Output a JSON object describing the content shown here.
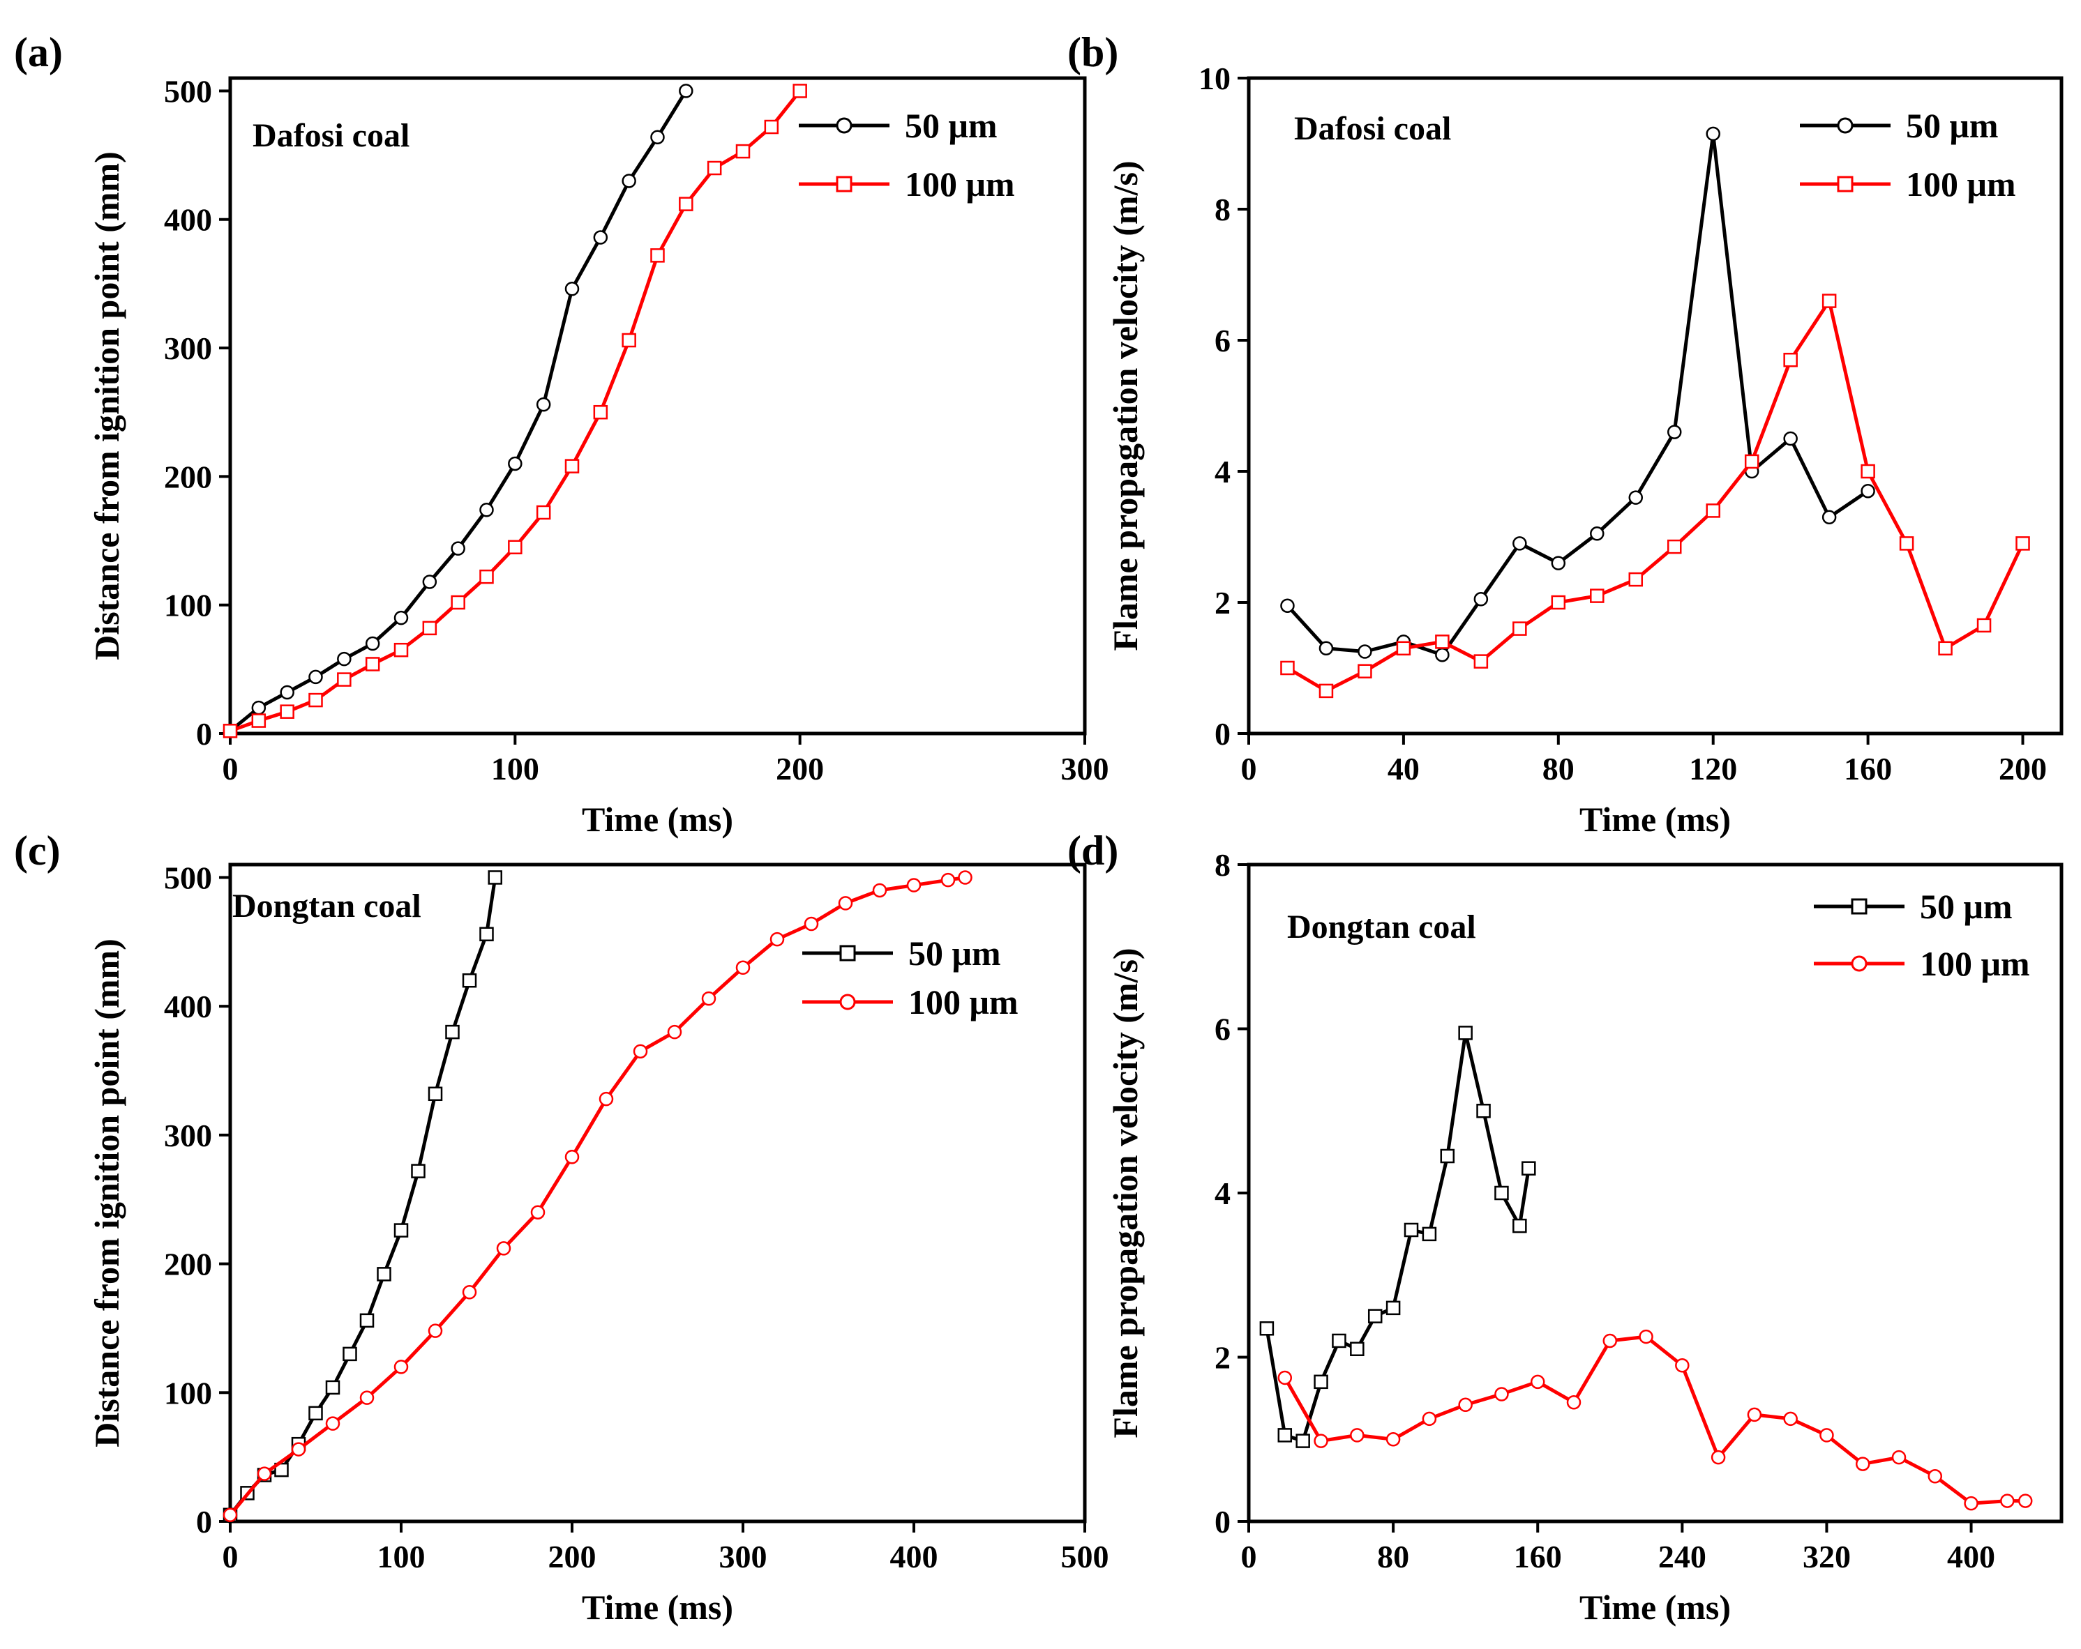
{
  "colors": {
    "black": "#000000",
    "red": "#ff0000",
    "marker_fill": "#ffffff"
  },
  "chart_data": [
    {
      "panel": "(a)",
      "type": "line",
      "annotation": "Dafosi coal",
      "xlabel": "Time (ms)",
      "ylabel": "Distance from ignition point (mm)",
      "xlim": [
        0,
        300
      ],
      "ylim": [
        0,
        510
      ],
      "xticks": [
        0,
        100,
        200,
        300
      ],
      "yticks": [
        0,
        100,
        200,
        300,
        400,
        500
      ],
      "legend": "top-right",
      "series": [
        {
          "name": "50 μm",
          "color": "#000000",
          "marker": "circle",
          "x": [
            0,
            10,
            20,
            30,
            40,
            50,
            60,
            70,
            80,
            90,
            100,
            110,
            120,
            130,
            140,
            150,
            160
          ],
          "y": [
            2,
            20,
            32,
            44,
            58,
            70,
            90,
            118,
            144,
            174,
            210,
            256,
            346,
            386,
            430,
            464,
            500
          ]
        },
        {
          "name": "100 μm",
          "color": "#ff0000",
          "marker": "square",
          "x": [
            0,
            10,
            20,
            30,
            40,
            50,
            60,
            70,
            80,
            90,
            100,
            110,
            120,
            130,
            140,
            150,
            160,
            170,
            180,
            190,
            200
          ],
          "y": [
            2,
            10,
            17,
            26,
            42,
            54,
            65,
            82,
            102,
            122,
            145,
            172,
            208,
            250,
            306,
            372,
            412,
            440,
            453,
            472,
            500
          ]
        }
      ]
    },
    {
      "panel": "(b)",
      "type": "line",
      "annotation": "Dafosi coal",
      "xlabel": "Time (ms)",
      "ylabel": "Flame propagation velocity (m/s)",
      "xlim": [
        0,
        210
      ],
      "ylim": [
        0,
        10
      ],
      "xticks": [
        0,
        40,
        80,
        120,
        160,
        200
      ],
      "yticks": [
        0,
        2,
        4,
        6,
        8,
        10
      ],
      "legend": "top-right",
      "series": [
        {
          "name": "50 μm",
          "color": "#000000",
          "marker": "circle",
          "x": [
            10,
            20,
            30,
            40,
            50,
            60,
            70,
            80,
            90,
            100,
            110,
            120,
            130,
            140,
            150,
            160
          ],
          "y": [
            1.95,
            1.3,
            1.25,
            1.4,
            1.2,
            2.05,
            2.9,
            2.6,
            3.05,
            3.6,
            4.6,
            9.15,
            4.0,
            4.5,
            3.3,
            3.7
          ]
        },
        {
          "name": "100 μm",
          "color": "#ff0000",
          "marker": "square",
          "x": [
            10,
            20,
            30,
            40,
            50,
            60,
            70,
            80,
            90,
            100,
            110,
            120,
            130,
            140,
            150,
            160,
            170,
            180,
            190,
            200
          ],
          "y": [
            1.0,
            0.65,
            0.95,
            1.3,
            1.4,
            1.1,
            1.6,
            2.0,
            2.1,
            2.35,
            2.85,
            3.4,
            4.15,
            5.7,
            6.6,
            4.0,
            2.9,
            1.3,
            1.65,
            2.9
          ]
        }
      ]
    },
    {
      "panel": "(c)",
      "type": "line",
      "annotation": "Dongtan coal",
      "xlabel": "Time (ms)",
      "ylabel": "Distance from ignition point (mm)",
      "xlim": [
        0,
        500
      ],
      "ylim": [
        0,
        510
      ],
      "xticks": [
        0,
        100,
        200,
        300,
        400,
        500
      ],
      "yticks": [
        0,
        100,
        200,
        300,
        400,
        500
      ],
      "legend": "top-right",
      "series": [
        {
          "name": "50 μm",
          "color": "#000000",
          "marker": "square",
          "x": [
            0,
            10,
            20,
            30,
            40,
            50,
            60,
            70,
            80,
            90,
            100,
            110,
            120,
            130,
            140,
            150,
            155
          ],
          "y": [
            5,
            22,
            36,
            40,
            60,
            84,
            104,
            130,
            156,
            192,
            226,
            272,
            332,
            380,
            420,
            456,
            500
          ]
        },
        {
          "name": "100 μm",
          "color": "#ff0000",
          "marker": "circle",
          "x": [
            0,
            20,
            40,
            60,
            80,
            100,
            120,
            140,
            160,
            180,
            200,
            220,
            240,
            260,
            280,
            300,
            320,
            340,
            360,
            380,
            400,
            420,
            430
          ],
          "y": [
            5,
            37,
            56,
            76,
            96,
            120,
            148,
            178,
            212,
            240,
            283,
            328,
            365,
            380,
            406,
            430,
            452,
            464,
            480,
            490,
            494,
            498,
            500
          ]
        }
      ]
    },
    {
      "panel": "(d)",
      "type": "line",
      "annotation": "Dongtan coal",
      "xlabel": "Time (ms)",
      "ylabel": "Flame propagation velocity (m/s)",
      "xlim": [
        0,
        450
      ],
      "ylim": [
        0,
        8
      ],
      "xticks": [
        0,
        80,
        160,
        240,
        320,
        400
      ],
      "yticks": [
        0,
        2,
        4,
        6,
        8
      ],
      "legend": "top-right",
      "series": [
        {
          "name": "50 μm",
          "color": "#000000",
          "marker": "square",
          "x": [
            10,
            20,
            30,
            40,
            50,
            60,
            70,
            80,
            90,
            100,
            110,
            120,
            130,
            140,
            150,
            155
          ],
          "y": [
            2.35,
            1.05,
            0.98,
            1.7,
            2.2,
            2.1,
            2.5,
            2.6,
            3.55,
            3.5,
            4.45,
            5.95,
            5.0,
            4.0,
            3.6,
            4.3
          ]
        },
        {
          "name": "100 μm",
          "color": "#ff0000",
          "marker": "circle",
          "x": [
            20,
            40,
            60,
            80,
            100,
            120,
            140,
            160,
            180,
            200,
            220,
            240,
            260,
            280,
            300,
            320,
            340,
            360,
            380,
            400,
            420,
            430
          ],
          "y": [
            1.75,
            0.98,
            1.05,
            1.0,
            1.25,
            1.42,
            1.55,
            1.7,
            1.45,
            2.2,
            2.25,
            1.9,
            0.78,
            1.3,
            1.25,
            1.05,
            0.7,
            0.78,
            0.55,
            0.22,
            0.25,
            0.25
          ]
        }
      ]
    }
  ]
}
